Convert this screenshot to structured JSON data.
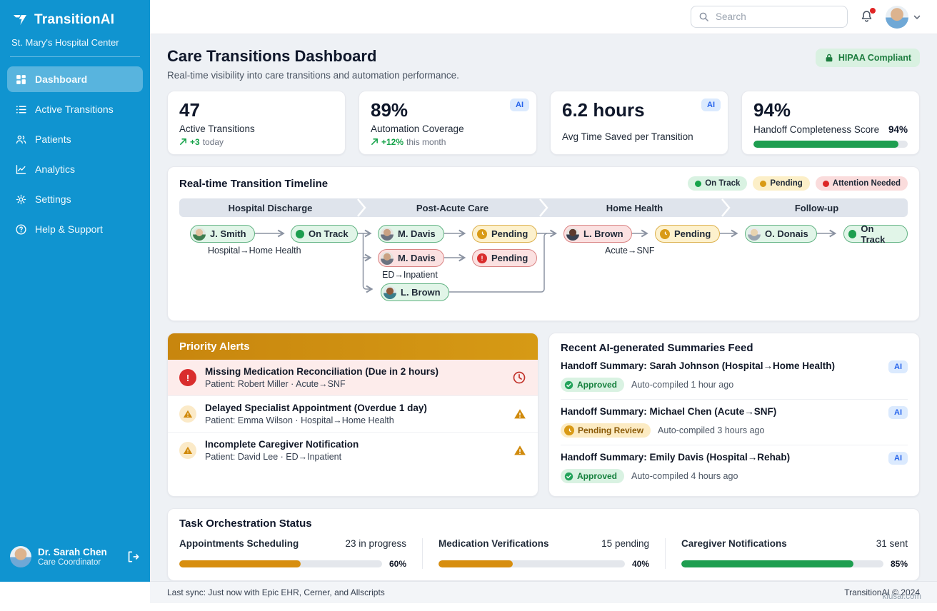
{
  "app": {
    "brand": "TransitionAI",
    "org": "St. Mary's Hospital Center"
  },
  "sidebar": {
    "items": [
      {
        "label": "Dashboard",
        "icon": "dashboard-icon",
        "active": true
      },
      {
        "label": "Active Transitions",
        "icon": "list-icon",
        "active": false
      },
      {
        "label": "Patients",
        "icon": "patients-icon",
        "active": false
      },
      {
        "label": "Analytics",
        "icon": "analytics-icon",
        "active": false
      },
      {
        "label": "Settings",
        "icon": "settings-icon",
        "active": false
      },
      {
        "label": "Help & Support",
        "icon": "help-icon",
        "active": false
      }
    ],
    "user": {
      "name": "Dr. Sarah Chen",
      "role": "Care Coordinator"
    }
  },
  "header": {
    "search_placeholder": "Search"
  },
  "page": {
    "title": "Care Transitions Dashboard",
    "subtitle": "Real-time visibility into care transitions and automation performance.",
    "compliance_badge": "HIPAA Compliant"
  },
  "kpis": [
    {
      "value": "47",
      "label": "Active Transitions",
      "delta": "+3",
      "delta_suffix": "today"
    },
    {
      "value": "89%",
      "label": "Automation Coverage",
      "delta": "+12%",
      "delta_suffix": "this month",
      "ai_badge": "AI"
    },
    {
      "value": "6.2 hours",
      "label": "Avg Time Saved per Transition",
      "ai_badge": "AI"
    },
    {
      "value": "94%",
      "label": "Handoff Completeness Score",
      "progress_label": "94%",
      "progress_pct": 94
    }
  ],
  "timeline": {
    "title": "Real-time Transition Timeline",
    "legend": [
      {
        "label": "On Track",
        "color": "#16a34a"
      },
      {
        "label": "Pending",
        "color": "#d99a16"
      },
      {
        "label": "Attention Needed",
        "color": "#dc2626"
      }
    ],
    "stages": [
      "Hospital Discharge",
      "Post-Acute Care",
      "Home Health",
      "Follow-up"
    ],
    "nodes": [
      {
        "label": "J. Smith"
      },
      {
        "label": "On Track"
      },
      {
        "label": "M. Davis"
      },
      {
        "label": "Pending"
      },
      {
        "label": "M. Davis"
      },
      {
        "label": "Pending"
      },
      {
        "label": "L. Brown"
      },
      {
        "label": "L. Brown"
      },
      {
        "label": "Pending"
      },
      {
        "label": "O. Donais"
      },
      {
        "label": "On Track"
      }
    ],
    "captions": [
      {
        "text": "Hospital→Home Health"
      },
      {
        "text": "ED→Inpatient"
      },
      {
        "text": "Acute→SNF"
      }
    ]
  },
  "alerts": {
    "title": "Priority Alerts",
    "items": [
      {
        "title": "Missing Medication Reconciliation (Due in 2 hours)",
        "detail": "Patient: Robert Miller · Acute→SNF",
        "severity": "critical"
      },
      {
        "title": "Delayed Specialist Appointment (Overdue 1 day)",
        "detail": "Patient: Emma Wilson · Hospital→Home Health",
        "severity": "warning"
      },
      {
        "title": "Incomplete Caregiver Notification",
        "detail": "Patient: David Lee · ED→Inpatient",
        "severity": "warning"
      }
    ]
  },
  "summaries": {
    "title": "Recent AI-generated Summaries Feed",
    "items": [
      {
        "title": "Handoff Summary: Sarah Johnson (Hospital→Home Health)",
        "status": "Approved",
        "meta": "Auto-compiled 1 hour ago",
        "ai_badge": "AI"
      },
      {
        "title": "Handoff Summary: Michael Chen (Acute→SNF)",
        "status": "Pending Review",
        "meta": "Auto-compiled 3 hours ago",
        "ai_badge": "AI"
      },
      {
        "title": "Handoff Summary: Emily Davis (Hospital→Rehab)",
        "status": "Approved",
        "meta": "Auto-compiled 4 hours ago",
        "ai_badge": "AI"
      }
    ]
  },
  "tasks": {
    "title": "Task Orchestration Status",
    "items": [
      {
        "label": "Appointments Scheduling",
        "count": "23 in progress",
        "pct": "60%",
        "value": 60,
        "color": "#d78e0f"
      },
      {
        "label": "Medication Verifications",
        "count": "15 pending",
        "pct": "40%",
        "value": 40,
        "color": "#d78e0f"
      },
      {
        "label": "Caregiver Notifications",
        "count": "31 sent",
        "pct": "85%",
        "value": 85,
        "color": "#1e9e50"
      }
    ]
  },
  "footer": {
    "left": "Last sync: Just now with Epic EHR, Cerner, and Allscripts",
    "right": "TransitionAI © 2024"
  },
  "watermark": "klusai.com",
  "colors": {
    "sidebar": "#1094d0",
    "green": "#16a34a",
    "amber": "#d99a16",
    "red": "#dc2626",
    "ai_blue": "#2563eb"
  }
}
